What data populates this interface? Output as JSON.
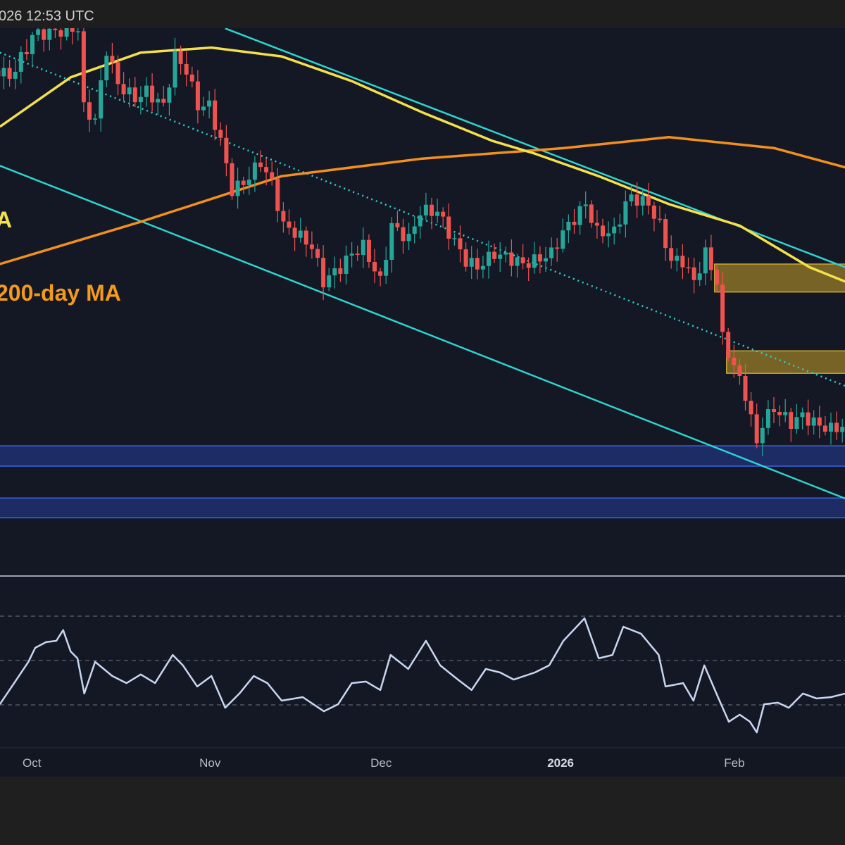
{
  "header": {
    "timestamp": "026 12:53 UTC"
  },
  "labels": {
    "ma100": "A",
    "ma200": "200-day MA"
  },
  "colors": {
    "background": "#141824",
    "up": "#26a69a",
    "down": "#ef5350",
    "ma100": "#f4e04d",
    "ma200": "#f3901c",
    "trend": "#2ed3cf",
    "supply_zone": "#c9a227",
    "demand_zone": "#2a45b8",
    "rsi": "#c8d6f0"
  },
  "chart_data": {
    "type": "candlestick",
    "x_ticks": [
      {
        "label": "Oct",
        "day": 0
      },
      {
        "label": "Nov",
        "day": 31
      },
      {
        "label": "Dec",
        "day": 61
      },
      {
        "label": "2026",
        "day": 92,
        "bold": true
      },
      {
        "label": "Feb",
        "day": 123
      }
    ],
    "x_unit": "days since Oct 1",
    "price_unit": "relative price index",
    "ylim": [
      0,
      100
    ],
    "price_path": [
      [
        -6,
        92.1
      ],
      [
        -4,
        90.8
      ],
      [
        -1,
        95.9
      ],
      [
        0,
        98.5
      ],
      [
        8,
        99.7
      ],
      [
        9,
        85.1
      ],
      [
        11,
        83.1
      ],
      [
        13,
        95.9
      ],
      [
        15,
        89.5
      ],
      [
        18,
        86.9
      ],
      [
        20,
        88.2
      ],
      [
        23,
        85.6
      ],
      [
        25,
        94.6
      ],
      [
        27,
        92.1
      ],
      [
        29,
        85.6
      ],
      [
        31,
        85.6
      ],
      [
        33,
        79.2
      ],
      [
        35,
        70.3
      ],
      [
        37,
        71.5
      ],
      [
        40,
        75.4
      ],
      [
        42,
        71.5
      ],
      [
        44,
        63.8
      ],
      [
        46,
        62.6
      ],
      [
        49,
        60.0
      ],
      [
        51,
        53.6
      ],
      [
        54,
        56.2
      ],
      [
        56,
        58.7
      ],
      [
        58,
        60.0
      ],
      [
        61,
        53.6
      ],
      [
        63,
        63.8
      ],
      [
        66,
        61.3
      ],
      [
        68,
        66.4
      ],
      [
        71,
        66.4
      ],
      [
        73,
        62.6
      ],
      [
        76,
        57.4
      ],
      [
        78,
        56.2
      ],
      [
        81,
        58.7
      ],
      [
        83,
        58.1
      ],
      [
        86,
        56.8
      ],
      [
        88,
        57.4
      ],
      [
        91,
        58.7
      ],
      [
        93,
        62.6
      ],
      [
        95,
        65.1
      ],
      [
        97,
        67.7
      ],
      [
        99,
        62.6
      ],
      [
        102,
        62.6
      ],
      [
        104,
        67.7
      ],
      [
        105,
        69.0
      ],
      [
        108,
        67.7
      ],
      [
        110,
        63.8
      ],
      [
        112,
        57.4
      ],
      [
        114,
        57.4
      ],
      [
        116,
        53.6
      ],
      [
        118,
        58.7
      ],
      [
        120,
        53.6
      ],
      [
        121,
        43.3
      ],
      [
        123,
        38.2
      ],
      [
        125,
        33.1
      ],
      [
        127,
        24.1
      ],
      [
        128,
        27.9
      ],
      [
        130,
        30.5
      ],
      [
        133,
        27.9
      ],
      [
        135,
        29.2
      ],
      [
        137,
        27.9
      ],
      [
        140,
        26.7
      ],
      [
        142,
        27.3
      ]
    ],
    "ma200": [
      [
        -5.7,
        56.8
      ],
      [
        19,
        64.5
      ],
      [
        43.7,
        72.8
      ],
      [
        68.4,
        76
      ],
      [
        93.1,
        77.9
      ],
      [
        111.6,
        79.9
      ],
      [
        130.1,
        77.9
      ],
      [
        142.5,
        74.4
      ]
    ],
    "ma100": [
      [
        -5.7,
        81.8
      ],
      [
        6.7,
        90.8
      ],
      [
        19,
        95.3
      ],
      [
        31.4,
        96.2
      ],
      [
        43.7,
        94.6
      ],
      [
        56,
        90.1
      ],
      [
        68.4,
        84.4
      ],
      [
        80.7,
        79.2
      ],
      [
        88.1,
        76.9
      ],
      [
        99.3,
        72.8
      ],
      [
        111.6,
        67.7
      ],
      [
        124,
        63.8
      ],
      [
        136.3,
        56.2
      ],
      [
        142.5,
        53.6
      ]
    ],
    "trendlines": [
      {
        "name": "channel-upper",
        "points": [
          [
            33.8,
            99.7
          ],
          [
            142.5,
            56.2
          ]
        ],
        "dotted": false
      },
      {
        "name": "channel-lower",
        "points": [
          [
            -5.7,
            74.7
          ],
          [
            142.5,
            14.1
          ]
        ],
        "dotted": false
      },
      {
        "name": "channel-mid",
        "points": [
          [
            -5.7,
            95.3
          ],
          [
            142.5,
            34.6
          ]
        ],
        "dotted": true
      }
    ],
    "supply_zones": [
      {
        "from_day": 119.6,
        "low": 51.7,
        "high": 56.8
      },
      {
        "from_day": 121.7,
        "low": 36.9,
        "high": 41.0
      }
    ],
    "demand_zones": [
      {
        "low": 20.0,
        "high": 23.7
      },
      {
        "low": 10.6,
        "high": 14.2
      }
    ],
    "rsi": {
      "levels": [
        70,
        50,
        30
      ],
      "values": [
        [
          -5.7,
          30.3
        ],
        [
          -3.2,
          39.8
        ],
        [
          -0.7,
          49.4
        ],
        [
          0.5,
          55.7
        ],
        [
          2.4,
          58.3
        ],
        [
          4.2,
          58.9
        ],
        [
          5.4,
          63.7
        ],
        [
          6.7,
          54.1
        ],
        [
          7.9,
          51
        ],
        [
          9.1,
          35.1
        ],
        [
          11,
          49.4
        ],
        [
          14,
          43
        ],
        [
          16.5,
          39.8
        ],
        [
          19,
          43.7
        ],
        [
          21.5,
          39.8
        ],
        [
          24.6,
          52.5
        ],
        [
          26.4,
          47.8
        ],
        [
          28.9,
          38.3
        ],
        [
          31.4,
          43
        ],
        [
          33.8,
          28.7
        ],
        [
          36.3,
          35.1
        ],
        [
          38.8,
          43
        ],
        [
          41.2,
          39.8
        ],
        [
          43.7,
          31.9
        ],
        [
          47.4,
          33.5
        ],
        [
          51.1,
          27.1
        ],
        [
          53.6,
          30.3
        ],
        [
          56,
          39.8
        ],
        [
          58.5,
          40.5
        ],
        [
          61,
          36.7
        ],
        [
          62.8,
          52.5
        ],
        [
          65.9,
          46.2
        ],
        [
          69,
          58.9
        ],
        [
          71.5,
          47.8
        ],
        [
          74.6,
          41.4
        ],
        [
          77,
          36.7
        ],
        [
          79.5,
          46.2
        ],
        [
          82,
          44.6
        ],
        [
          84.4,
          41.4
        ],
        [
          88.1,
          44.6
        ],
        [
          90.6,
          47.8
        ],
        [
          93.1,
          58.9
        ],
        [
          96.8,
          69
        ],
        [
          99.3,
          51
        ],
        [
          101.7,
          52.5
        ],
        [
          103.6,
          65.2
        ],
        [
          106.7,
          62.1
        ],
        [
          109.8,
          52.5
        ],
        [
          111,
          38.3
        ],
        [
          114.1,
          39.8
        ],
        [
          115.9,
          31.9
        ],
        [
          117.8,
          47.8
        ],
        [
          120.2,
          33.5
        ],
        [
          122.1,
          22.4
        ],
        [
          124,
          25.6
        ],
        [
          125.8,
          22.4
        ],
        [
          127,
          17.6
        ],
        [
          128.3,
          30.3
        ],
        [
          130.7,
          31
        ],
        [
          132.6,
          28.7
        ],
        [
          135.1,
          35.1
        ],
        [
          137.5,
          32.9
        ],
        [
          140,
          33.5
        ],
        [
          142.5,
          35.1
        ]
      ]
    }
  }
}
